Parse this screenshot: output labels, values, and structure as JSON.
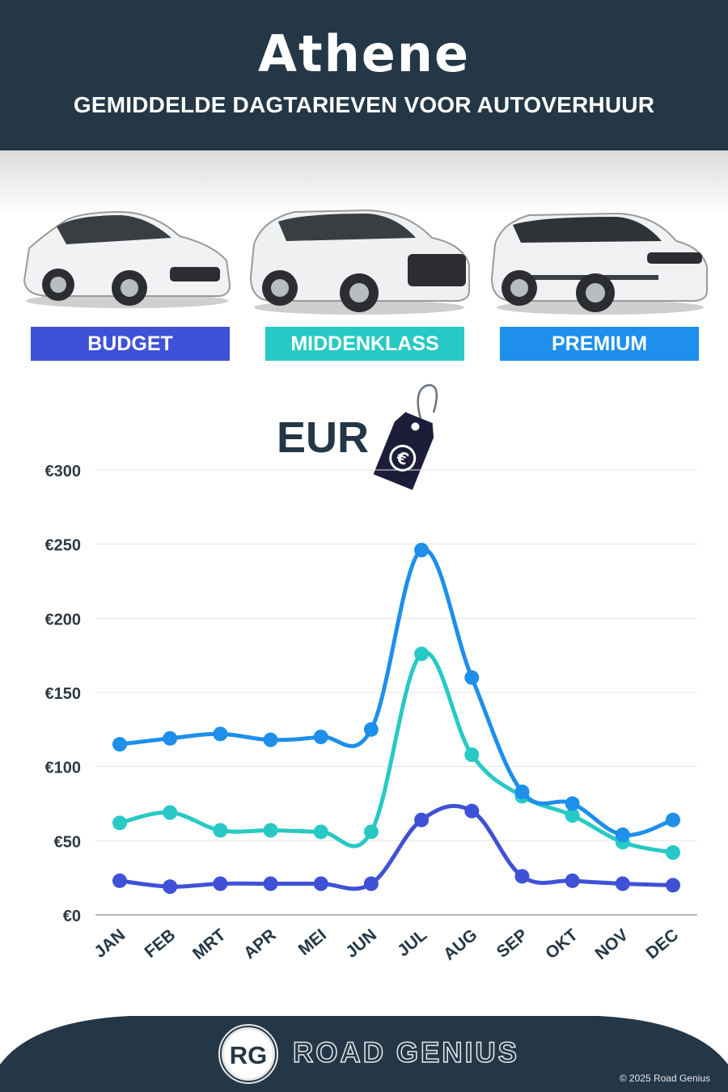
{
  "header": {
    "title": "Athene",
    "subtitle": "GEMIDDELDE DAGTARIEVEN VOOR AUTOVERHUUR"
  },
  "categories": [
    {
      "label": "BUDGET",
      "color": "#3F51D6"
    },
    {
      "label": "MIDDENKLASS",
      "color": "#27C9C4"
    },
    {
      "label": "PREMIUM",
      "color": "#1E8FEA"
    }
  ],
  "currency_label": "EUR",
  "currency_icon": "euro-price-tag-icon",
  "chart_data": {
    "type": "line",
    "categories": [
      "JAN",
      "FEB",
      "MRT",
      "APR",
      "MEI",
      "JUN",
      "JUL",
      "AUG",
      "SEP",
      "OKT",
      "NOV",
      "DEC"
    ],
    "series": [
      {
        "name": "BUDGET",
        "color": "#3F51D6",
        "values": [
          23,
          19,
          21,
          21,
          21,
          21,
          64,
          70,
          26,
          23,
          21,
          20
        ]
      },
      {
        "name": "MIDDENKLASS",
        "color": "#27C9C4",
        "values": [
          62,
          69,
          57,
          57,
          56,
          56,
          176,
          108,
          80,
          67,
          49,
          42
        ]
      },
      {
        "name": "PREMIUM",
        "color": "#1E8FEA",
        "values": [
          115,
          119,
          122,
          118,
          120,
          125,
          246,
          160,
          83,
          75,
          54,
          64
        ]
      }
    ],
    "y_ticks": [
      "€0",
      "€50",
      "€100",
      "€150",
      "€200",
      "€250",
      "€300"
    ],
    "ylim": [
      0,
      300
    ],
    "grid": true
  },
  "footer": {
    "logo_text": "RG",
    "brand": "ROAD GENIUS",
    "copyright": "© 2025 Road Genius"
  }
}
